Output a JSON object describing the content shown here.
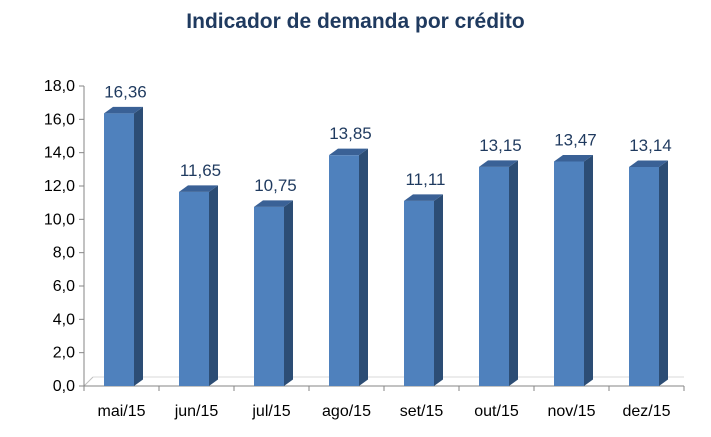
{
  "chart_data": {
    "type": "bar",
    "title": "Indicador de demanda por crédito",
    "categories": [
      "mai/15",
      "jun/15",
      "jul/15",
      "ago/15",
      "set/15",
      "out/15",
      "nov/15",
      "dez/15"
    ],
    "values": [
      16.36,
      11.65,
      10.75,
      13.85,
      11.11,
      13.15,
      13.47,
      13.14
    ],
    "data_labels": [
      "16,36",
      "11,65",
      "10,75",
      "13,85",
      "11,11",
      "13,15",
      "13,47",
      "13,14"
    ],
    "ylim": [
      0,
      18
    ],
    "yticks": [
      "0,0",
      "2,0",
      "4,0",
      "6,0",
      "8,0",
      "10,0",
      "12,0",
      "14,0",
      "16,0",
      "18,0"
    ],
    "xlabel": "",
    "ylabel": "",
    "grid": false,
    "legend": "none",
    "style": "3d-column",
    "colors": {
      "bar_front": "#4f81bd",
      "bar_side": "#2c4d75",
      "bar_top": "#3a6196",
      "label": "#1f3a5f"
    }
  }
}
